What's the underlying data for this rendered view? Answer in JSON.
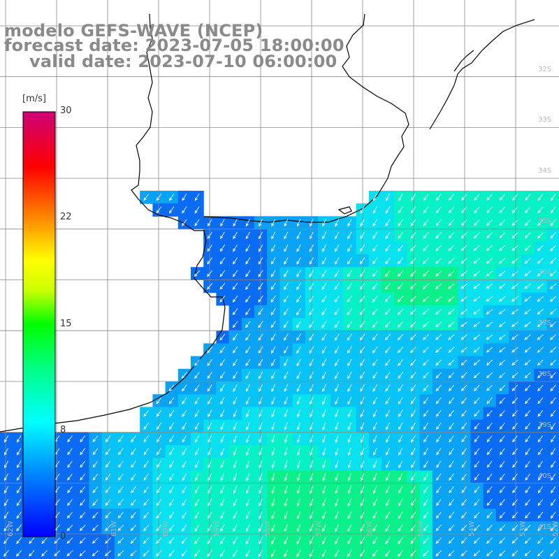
{
  "title": {
    "line1": "modelo GEFS-WAVE (NCEP)",
    "line2": "forecast date: 2023-07-05 18:00:00",
    "line3": "valid date: 2023-07-10 06:00:00"
  },
  "colorbar": {
    "unit": "[m/s]",
    "ticks": [
      "30",
      "22",
      "15",
      "8",
      "0"
    ],
    "tick_values": [
      30,
      22,
      15,
      8,
      0
    ],
    "range": [
      0,
      30
    ],
    "colors": [
      "#0000ff",
      "#00aaff",
      "#00ffff",
      "#00ff00",
      "#ffff00",
      "#ff8800",
      "#ff0000",
      "#cc0066"
    ]
  },
  "map": {
    "lat_labels": [
      "32S",
      "33S",
      "34S",
      "35S",
      "36S",
      "37S",
      "38S",
      "39S",
      "40S",
      "41S"
    ],
    "lon_labels": [
      "62W",
      "61W",
      "60W",
      "59W",
      "58W",
      "57W",
      "56W",
      "55W",
      "54W",
      "53W",
      "52W"
    ],
    "land_color": "#ffffff",
    "grid_color": "#888888",
    "coast_color": "#000000",
    "arrow_color": "#ffffff",
    "wind_direction": "from north-east"
  }
}
